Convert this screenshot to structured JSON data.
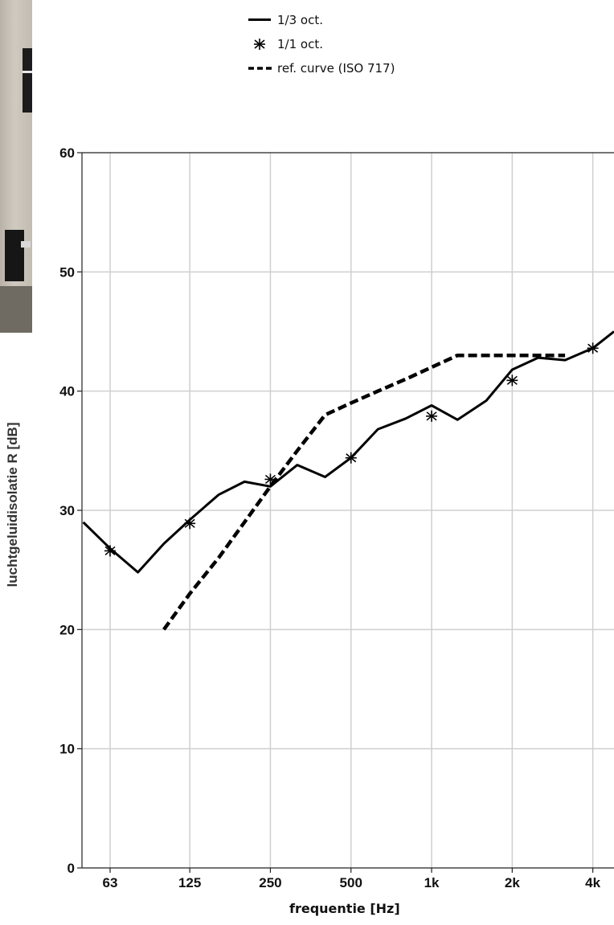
{
  "legend": {
    "items": [
      {
        "label": "1/3 oct.",
        "style": "solid"
      },
      {
        "label": "1/1 oct.",
        "style": "star"
      },
      {
        "label": "ref. curve (ISO 717)",
        "style": "dashed"
      }
    ]
  },
  "chart_data": {
    "type": "line",
    "xlabel": "frequentie [Hz]",
    "ylabel": "luchtgeluidisolatie R [dB]",
    "x_scale": "log",
    "ylim": [
      0,
      60
    ],
    "yticks": [
      "0",
      "10",
      "20",
      "30",
      "40",
      "50",
      "60"
    ],
    "xticks": [
      {
        "label": "63",
        "hz": 63
      },
      {
        "label": "125",
        "hz": 125
      },
      {
        "label": "250",
        "hz": 250
      },
      {
        "label": "500",
        "hz": 500
      },
      {
        "label": "1k",
        "hz": 1000
      },
      {
        "label": "2k",
        "hz": 2000
      },
      {
        "label": "4k",
        "hz": 4000
      }
    ],
    "grid": true,
    "legend_position": "top",
    "series": [
      {
        "name": "1/3 oct.",
        "style": "solid",
        "points": [
          {
            "hz": 50,
            "y": 29.0
          },
          {
            "hz": 63,
            "y": 26.8
          },
          {
            "hz": 80,
            "y": 24.8
          },
          {
            "hz": 100,
            "y": 27.2
          },
          {
            "hz": 125,
            "y": 29.2
          },
          {
            "hz": 160,
            "y": 31.3
          },
          {
            "hz": 200,
            "y": 32.4
          },
          {
            "hz": 250,
            "y": 32.0
          },
          {
            "hz": 315,
            "y": 33.8
          },
          {
            "hz": 400,
            "y": 32.8
          },
          {
            "hz": 500,
            "y": 34.4
          },
          {
            "hz": 630,
            "y": 36.8
          },
          {
            "hz": 800,
            "y": 37.7
          },
          {
            "hz": 1000,
            "y": 38.8
          },
          {
            "hz": 1250,
            "y": 37.6
          },
          {
            "hz": 1600,
            "y": 39.2
          },
          {
            "hz": 2000,
            "y": 41.8
          },
          {
            "hz": 2500,
            "y": 42.8
          },
          {
            "hz": 3150,
            "y": 42.6
          },
          {
            "hz": 4000,
            "y": 43.6
          },
          {
            "hz": 5000,
            "y": 45.0
          }
        ]
      },
      {
        "name": "1/1 oct.",
        "style": "star",
        "points": [
          {
            "hz": 63,
            "y": 26.6
          },
          {
            "hz": 125,
            "y": 28.9
          },
          {
            "hz": 250,
            "y": 32.6
          },
          {
            "hz": 500,
            "y": 34.4
          },
          {
            "hz": 1000,
            "y": 37.9
          },
          {
            "hz": 2000,
            "y": 40.9
          },
          {
            "hz": 4000,
            "y": 43.6
          }
        ]
      },
      {
        "name": "ref. curve (ISO 717)",
        "style": "dashed",
        "points": [
          {
            "hz": 100,
            "y": 20
          },
          {
            "hz": 125,
            "y": 23
          },
          {
            "hz": 160,
            "y": 26
          },
          {
            "hz": 200,
            "y": 29
          },
          {
            "hz": 250,
            "y": 32
          },
          {
            "hz": 315,
            "y": 35
          },
          {
            "hz": 400,
            "y": 38
          },
          {
            "hz": 500,
            "y": 39
          },
          {
            "hz": 630,
            "y": 40
          },
          {
            "hz": 800,
            "y": 41
          },
          {
            "hz": 1000,
            "y": 42
          },
          {
            "hz": 1250,
            "y": 43
          },
          {
            "hz": 1600,
            "y": 43
          },
          {
            "hz": 2000,
            "y": 43
          },
          {
            "hz": 2500,
            "y": 43
          },
          {
            "hz": 3150,
            "y": 43
          }
        ]
      }
    ]
  }
}
